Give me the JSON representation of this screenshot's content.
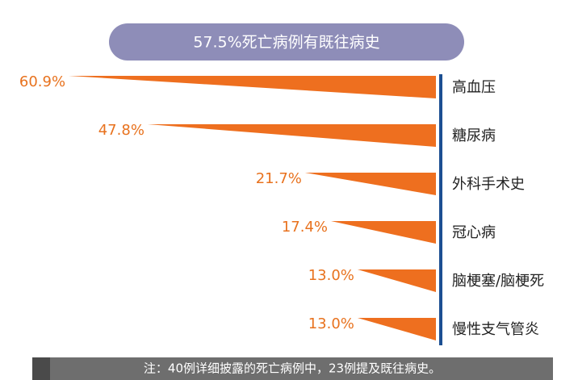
{
  "chart_data": {
    "type": "bar",
    "orientation": "horizontal",
    "title": "57.5%死亡病例有既往病史",
    "categories": [
      "高血压",
      "糖尿病",
      "外科手术史",
      "冠心病",
      "脑梗塞/脑梗死",
      "慢性支气管炎"
    ],
    "values": [
      60.9,
      47.8,
      21.7,
      17.4,
      13.0,
      13.0
    ],
    "value_labels": [
      "60.9%",
      "47.8%",
      "21.7%",
      "17.4%",
      "13.0%",
      "13.0%"
    ],
    "color": "#ee6f1f",
    "note": "注：40例详细披露的死亡病例中，23例提及既往病史。"
  }
}
